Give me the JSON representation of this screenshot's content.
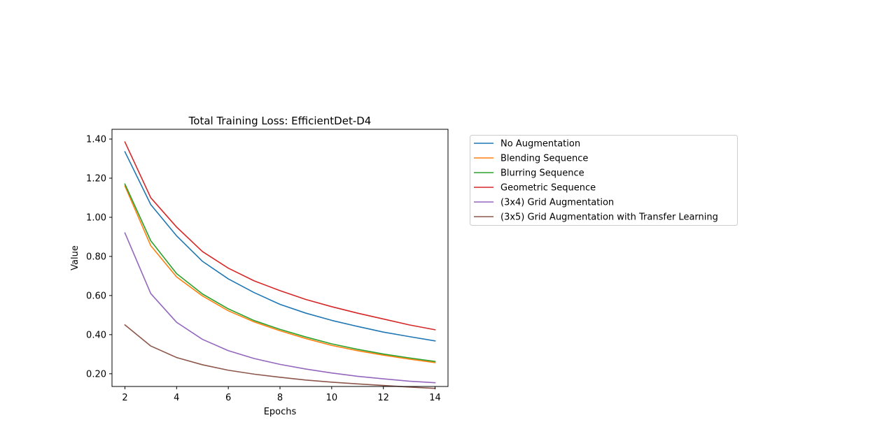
{
  "chart_data": {
    "type": "line",
    "title": "Total Training Loss: EfficientDet-D4",
    "xlabel": "Epochs",
    "ylabel": "Value",
    "x": [
      2,
      3,
      4,
      5,
      6,
      7,
      8,
      9,
      10,
      11,
      12,
      13,
      14
    ],
    "xlim": [
      1.5,
      14.5
    ],
    "ylim": [
      0.135,
      1.45
    ],
    "xticks": [
      2,
      4,
      6,
      8,
      10,
      12,
      14
    ],
    "xtick_labels": [
      "2",
      "4",
      "6",
      "8",
      "10",
      "12",
      "14"
    ],
    "yticks": [
      0.2,
      0.4,
      0.6,
      0.8,
      1.0,
      1.2,
      1.4
    ],
    "ytick_labels": [
      "0.20",
      "0.40",
      "0.60",
      "0.80",
      "1.00",
      "1.20",
      "1.40"
    ],
    "grid": false,
    "legend_position": "outside-right",
    "series": [
      {
        "name": "No Augmentation",
        "color": "#1f77b4",
        "values": [
          1.335,
          1.065,
          0.905,
          0.775,
          0.685,
          0.615,
          0.555,
          0.51,
          0.473,
          0.442,
          0.413,
          0.39,
          0.368
        ]
      },
      {
        "name": "Blending Sequence",
        "color": "#ff7f0e",
        "values": [
          1.16,
          0.855,
          0.695,
          0.598,
          0.522,
          0.465,
          0.42,
          0.38,
          0.345,
          0.318,
          0.295,
          0.275,
          0.257
        ]
      },
      {
        "name": "Blurring Sequence",
        "color": "#2ca02c",
        "values": [
          1.17,
          0.88,
          0.712,
          0.608,
          0.532,
          0.472,
          0.427,
          0.388,
          0.353,
          0.325,
          0.301,
          0.281,
          0.263
        ]
      },
      {
        "name": "Geometric Sequence",
        "color": "#d62728",
        "values": [
          1.385,
          1.1,
          0.95,
          0.825,
          0.74,
          0.675,
          0.625,
          0.58,
          0.543,
          0.51,
          0.48,
          0.45,
          0.425
        ]
      },
      {
        "name": "(3x4) Grid Augmentation",
        "color": "#9467bd",
        "values": [
          0.92,
          0.61,
          0.463,
          0.376,
          0.318,
          0.278,
          0.248,
          0.224,
          0.204,
          0.187,
          0.174,
          0.162,
          0.154
        ]
      },
      {
        "name": "(3x5) Grid Augmentation with Transfer Learning",
        "color": "#8c564b",
        "values": [
          0.45,
          0.342,
          0.283,
          0.246,
          0.218,
          0.198,
          0.182,
          0.168,
          0.157,
          0.148,
          0.14,
          0.132,
          0.125
        ]
      }
    ]
  }
}
